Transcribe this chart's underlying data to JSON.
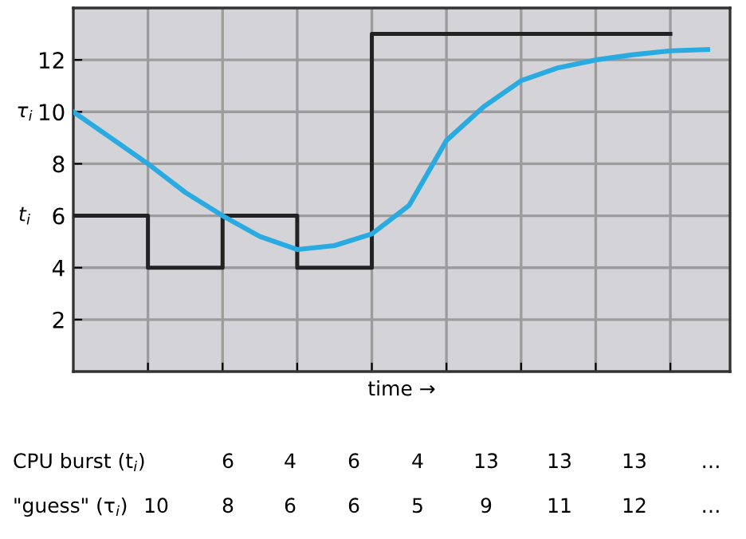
{
  "chart_data": {
    "type": "step",
    "xlabel": "time →",
    "categories": [
      null,
      null,
      null,
      null,
      null,
      null,
      null,
      null,
      null,
      null,
      null,
      null,
      null,
      null,
      null,
      null,
      null,
      null
    ],
    "ylim": [
      0,
      14
    ],
    "yticks": [
      2,
      4,
      6,
      8,
      10,
      12
    ],
    "tick_labels": "y",
    "grid": true,
    "legend": false,
    "series": [
      {
        "name": "t$_{i}$",
        "color": "#222222",
        "values": [
          6,
          6,
          4,
          4,
          6,
          6,
          4,
          4,
          13,
          13,
          13,
          13,
          13,
          13,
          13,
          13,
          13,
          null
        ]
      },
      {
        "type": "line",
        "name": "τ$_{i}$",
        "color": "#29abe2",
        "values": [
          10,
          9,
          8,
          6.9,
          6,
          5.2,
          4.7,
          4.85,
          5.3,
          6.4,
          8.9,
          10.2,
          11.2,
          11.7,
          12,
          12.2,
          12.35,
          12.4
        ]
      }
    ],
    "annotations": [
      "CPU burst (t$_{i}$)",
      "\"guess\" (τ$_{i}$)",
      "6",
      "4",
      "6",
      "4",
      "13",
      "13",
      "13",
      "…",
      "10",
      "8",
      "6",
      "6",
      "5",
      "9",
      "11",
      "12",
      "…"
    ]
  }
}
